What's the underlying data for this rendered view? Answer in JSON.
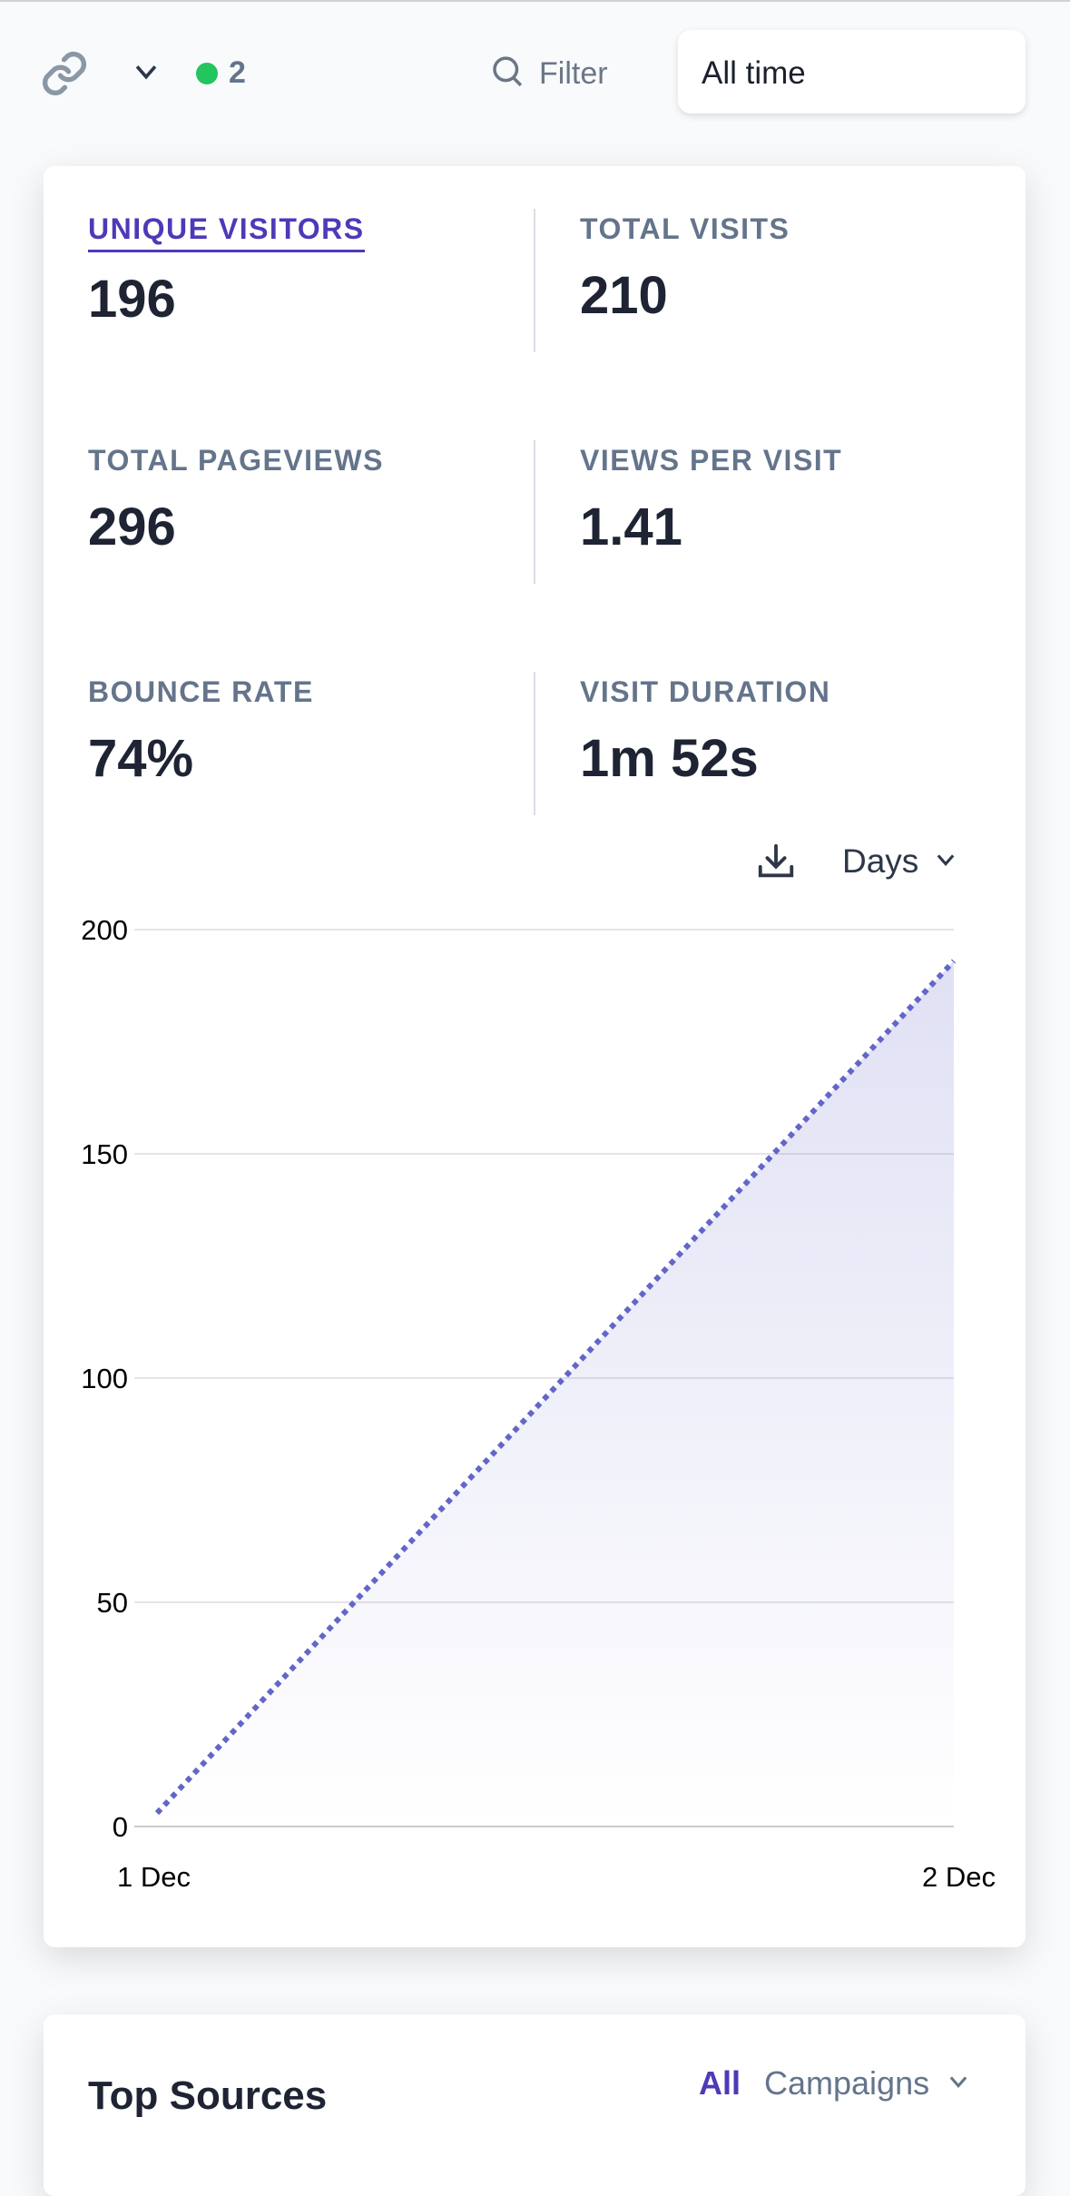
{
  "topbar": {
    "live_count": "2",
    "filter_label": "Filter",
    "period": "All time"
  },
  "stats": [
    {
      "label": "UNIQUE VISITORS",
      "value": "196",
      "active": true
    },
    {
      "label": "TOTAL VISITS",
      "value": "210"
    },
    {
      "label": "TOTAL PAGEVIEWS",
      "value": "296"
    },
    {
      "label": "VIEWS PER VISIT",
      "value": "1.41"
    },
    {
      "label": "BOUNCE RATE",
      "value": "74%"
    },
    {
      "label": "VISIT DURATION",
      "value": "1m 52s"
    }
  ],
  "chart_controls": {
    "interval": "Days"
  },
  "chart_data": {
    "type": "line",
    "categories": [
      "1 Dec",
      "2 Dec"
    ],
    "series": [
      {
        "name": "Unique visitors",
        "values": [
          3,
          193
        ]
      }
    ],
    "y_ticks": [
      "0",
      "50",
      "100",
      "150",
      "200"
    ],
    "ylim": [
      0,
      200
    ],
    "grid": true,
    "color": "#6366c7"
  },
  "sources": {
    "title": "Top Sources",
    "tab_all": "All",
    "tab_campaigns": "Campaigns"
  }
}
